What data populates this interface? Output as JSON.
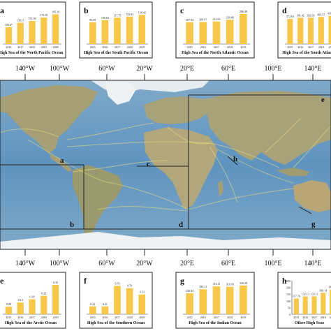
{
  "lon_labels_top": [
    "140°W",
    "100°W",
    "60°W",
    "20°W",
    "20°E",
    "60°E",
    "100°E",
    "140°E"
  ],
  "lon_labels_bottom": [
    "140°W",
    "100°W",
    "60°W",
    "20°W",
    "20°E",
    "60°E",
    "100°E",
    "140°E"
  ],
  "map_letters": [
    "a",
    "b",
    "c",
    "d",
    "e",
    "g",
    "h"
  ],
  "colors": {
    "ocean": "#6f9fc4",
    "ocean_deep": "#4f86b5",
    "land": "#a9a27a",
    "ice": "#e8eef2",
    "routes": "#f1e27a",
    "bar": "#f8c74a",
    "frame": "#222222"
  },
  "charts": [
    {
      "letter": "a",
      "title": "High Sea of the North Pacific Ocean",
      "categories": [
        "2016",
        "2017",
        "2018",
        "2019",
        "2020"
      ],
      "values": [
        109.67,
        139.11,
        151.38,
        173.5,
        195.19
      ],
      "labels": [
        "109.67",
        "139.11",
        "151.38",
        "173.50",
        "195.19"
      ],
      "ylim": [
        0,
        220
      ]
    },
    {
      "letter": "b",
      "title": "High Sea of the South Pacific Ocean",
      "categories": [
        "2015",
        "2016",
        "2017",
        "2018",
        "2019"
      ],
      "values": [
        96.69,
        106.64,
        117.75,
        122.63,
        130.42
      ],
      "labels": [
        "96.69",
        "106.64",
        "117.75",
        "122.63",
        "130.42"
      ],
      "ylim": [
        0,
        150
      ]
    },
    {
      "letter": "c",
      "title": "High Sea of the North Atlantic Ocean",
      "categories": [
        "2015",
        "2016",
        "2017",
        "2018",
        "2019"
      ],
      "values": [
        207.94,
        209.97,
        214.93,
        230.86,
        286.48
      ],
      "labels": [
        "207.94",
        "209.97",
        "214.93",
        "230.86",
        "286.48"
      ],
      "ylim": [
        0,
        320
      ]
    },
    {
      "letter": "d",
      "title": "High Sea of the South Atlantic",
      "categories": [
        "2015",
        "2016",
        "2017",
        "2018",
        "2019"
      ],
      "values": [
        372.63,
        391.42,
        392.93,
        403.57,
        420.1
      ],
      "labels": [
        "372.63",
        "391.42",
        "392.93",
        "403.57",
        "420.10"
      ],
      "ylim": [
        0,
        500
      ]
    },
    {
      "letter": "e",
      "title": "High Sea of the Arctic Ocean",
      "categories": [
        "2015",
        "2016",
        "2017",
        "2018",
        "2019"
      ],
      "values": [
        0.09,
        0.14,
        0.18,
        0.22,
        0.35
      ],
      "labels": [
        "0.09",
        "0.14",
        "0.18",
        "0.22",
        "0.35"
      ],
      "ylim": [
        0,
        0.4
      ]
    },
    {
      "letter": "f",
      "title": "High Sea of the Southern Ocean",
      "categories": [
        "2015",
        "2016",
        "2017",
        "2018",
        "2019"
      ],
      "values": [
        0.21,
        0.21,
        0.76,
        0.7,
        0.53
      ],
      "labels": [
        "0.21",
        "0.21",
        "0.76",
        "0.70",
        "0.53"
      ],
      "ylim": [
        0,
        0.9
      ]
    },
    {
      "letter": "g",
      "title": "High Sea of the Indian Ocean",
      "categories": [
        "2015",
        "2016",
        "2017",
        "2018",
        "2019"
      ],
      "values": [
        236.94,
        283.11,
        316.11,
        310.93,
        326.28
      ],
      "labels": [
        "236.94",
        "283.11",
        "316.11",
        "310.93",
        "326.28"
      ],
      "ylim": [
        0,
        380
      ]
    },
    {
      "letter": "h",
      "title": "Other High Seas",
      "categories": [
        "2015",
        "2016",
        "2017",
        "2018",
        "2019"
      ],
      "values": [
        117.76,
        132.13,
        133.11,
        160.14,
        184.13
      ],
      "labels": [
        "117.76",
        "132.13",
        "133.11",
        "160.14",
        "184.13"
      ],
      "ylim": [
        0,
        250
      ],
      "yticks": [
        "0",
        "50",
        "100",
        "150",
        "200",
        "250"
      ]
    }
  ]
}
